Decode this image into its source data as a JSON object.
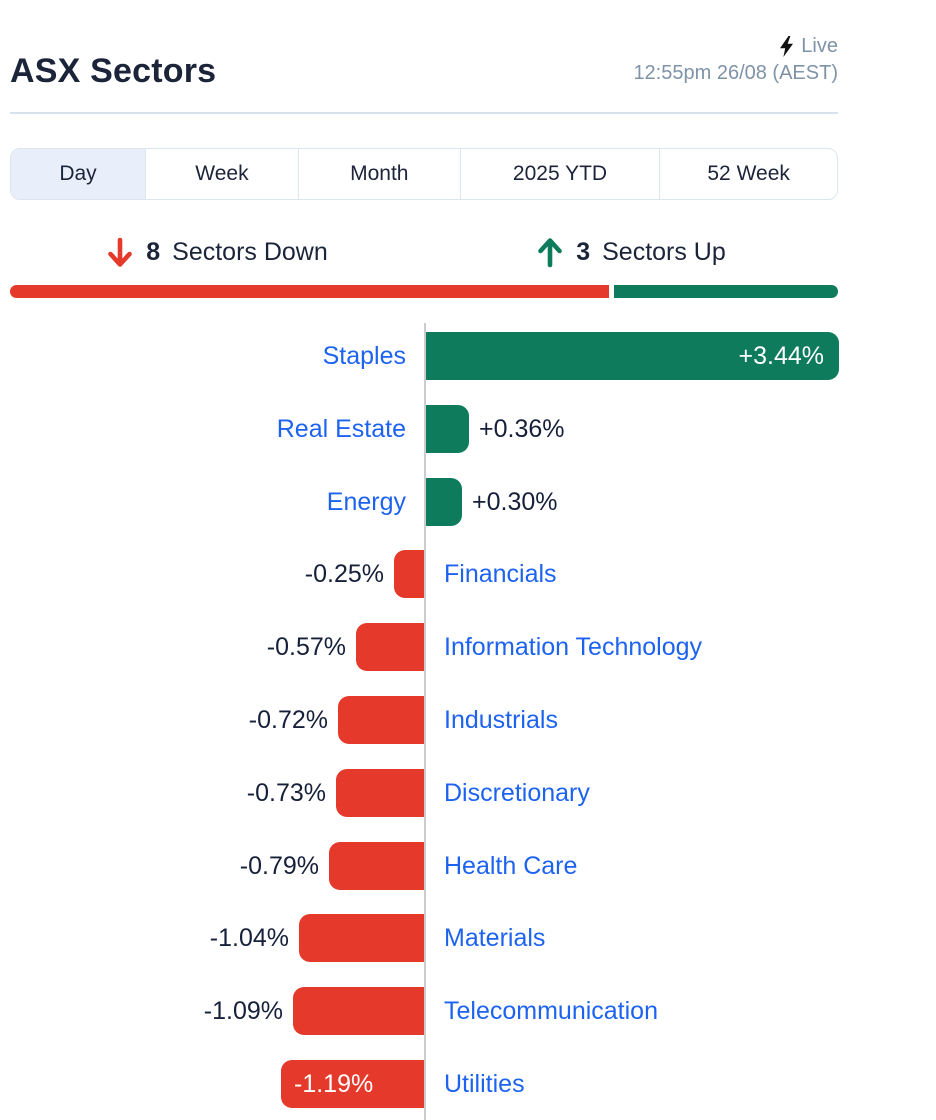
{
  "header": {
    "title": "ASX Sectors",
    "live_label": "Live",
    "timestamp": "12:55pm 26/08 (AEST)"
  },
  "tabs": [
    {
      "label": "Day",
      "selected": true
    },
    {
      "label": "Week",
      "selected": false
    },
    {
      "label": "Month",
      "selected": false
    },
    {
      "label": "2025 YTD",
      "selected": false
    },
    {
      "label": "52 Week",
      "selected": false
    }
  ],
  "summary": {
    "down_count": "8",
    "down_label": "Sectors Down",
    "up_count": "3",
    "up_label": "Sectors Up"
  },
  "colors": {
    "positive": "#0d7b5c",
    "negative": "#e5392b",
    "link_blue": "#1d63f0",
    "heading_navy": "#1b2439",
    "muted_slate": "#7e93a8"
  },
  "chart_data": {
    "type": "bar",
    "orientation": "horizontal",
    "title": "ASX Sectors — Day change",
    "value_unit": "%",
    "xlim": [
      -1.19,
      3.44
    ],
    "categories": [
      "Staples",
      "Real Estate",
      "Energy",
      "Financials",
      "Information Technology",
      "Industrials",
      "Discretionary",
      "Health Care",
      "Materials",
      "Telecommunication",
      "Utilities"
    ],
    "values": [
      3.44,
      0.36,
      0.3,
      -0.25,
      -0.57,
      -0.72,
      -0.73,
      -0.79,
      -1.04,
      -1.09,
      -1.19
    ],
    "value_labels": [
      "+3.44%",
      "+0.36%",
      "+0.30%",
      "-0.25%",
      "-0.57%",
      "-0.72%",
      "-0.73%",
      "-0.79%",
      "-1.04%",
      "-1.09%",
      "-1.19%"
    ],
    "label_inside": [
      true,
      false,
      false,
      false,
      false,
      false,
      false,
      false,
      false,
      false,
      true
    ],
    "sectors_up": 3,
    "sectors_down": 8
  }
}
